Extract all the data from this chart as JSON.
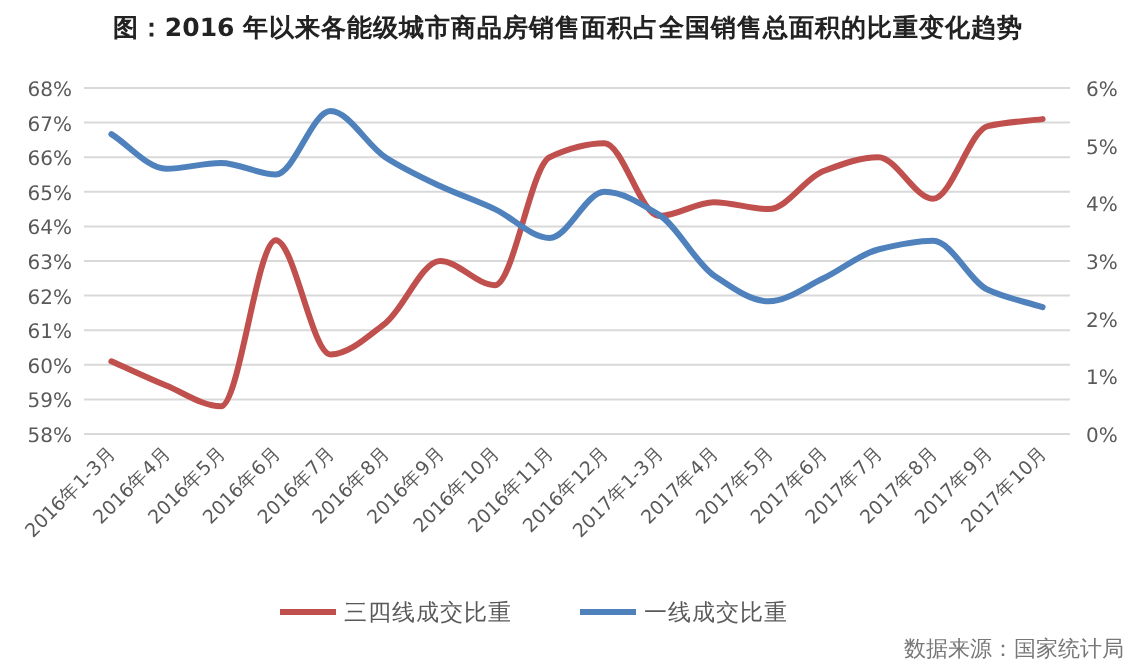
{
  "chart_data": {
    "type": "line",
    "title": "图：2016 年以来各能级城市商品房销售面积占全国销售总面积的比重变化趋势",
    "categories": [
      "2016年1-3月",
      "2016年4月",
      "2016年5月",
      "2016年6月",
      "2016年7月",
      "2016年8月",
      "2016年9月",
      "2016年10月",
      "2016年11月",
      "2016年12月",
      "2017年1-3月",
      "2017年4月",
      "2017年5月",
      "2017年6月",
      "2017年7月",
      "2017年8月",
      "2017年9月",
      "2017年10月"
    ],
    "series": [
      {
        "name": "三四线成交比重",
        "color": "#c0504d",
        "values": [
          60.1,
          59.4,
          58.8,
          63.6,
          60.3,
          61.2,
          63.0,
          62.3,
          66.0,
          66.4,
          64.3,
          64.7,
          64.5,
          65.6,
          66.0,
          64.8,
          66.9,
          67.1
        ]
      },
      {
        "name": "一线成交比重",
        "color": "#4f81bd",
        "axis": "y2",
        "values": [
          5.2,
          4.6,
          4.7,
          4.5,
          5.6,
          4.8,
          4.3,
          3.9,
          3.4,
          4.2,
          3.8,
          2.75,
          2.3,
          2.7,
          3.2,
          3.35,
          2.5,
          2.2
        ]
      }
    ],
    "ylim": [
      58,
      68
    ],
    "yticks": [
      {
        "value": 58,
        "label": "58%"
      },
      {
        "value": 59,
        "label": "59%"
      },
      {
        "value": 60,
        "label": "60%"
      },
      {
        "value": 61,
        "label": "61%"
      },
      {
        "value": 62,
        "label": "62%"
      },
      {
        "value": 63,
        "label": "63%"
      },
      {
        "value": 64,
        "label": "64%"
      },
      {
        "value": 65,
        "label": "65%"
      },
      {
        "value": 66,
        "label": "66%"
      },
      {
        "value": 67,
        "label": "67%"
      },
      {
        "value": 68,
        "label": "68%"
      }
    ],
    "y2lim": [
      0,
      6
    ],
    "y2ticks": [
      {
        "value": 0,
        "label": "0%"
      },
      {
        "value": 1,
        "label": "1%"
      },
      {
        "value": 2,
        "label": "2%"
      },
      {
        "value": 3,
        "label": "3%"
      },
      {
        "value": 4,
        "label": "4%"
      },
      {
        "value": 5,
        "label": "5%"
      },
      {
        "value": 6,
        "label": "6%"
      }
    ],
    "grid": "y",
    "legend": "bottom",
    "line_style": "solid",
    "annotations": [
      "数据来源：国家统计局"
    ]
  }
}
